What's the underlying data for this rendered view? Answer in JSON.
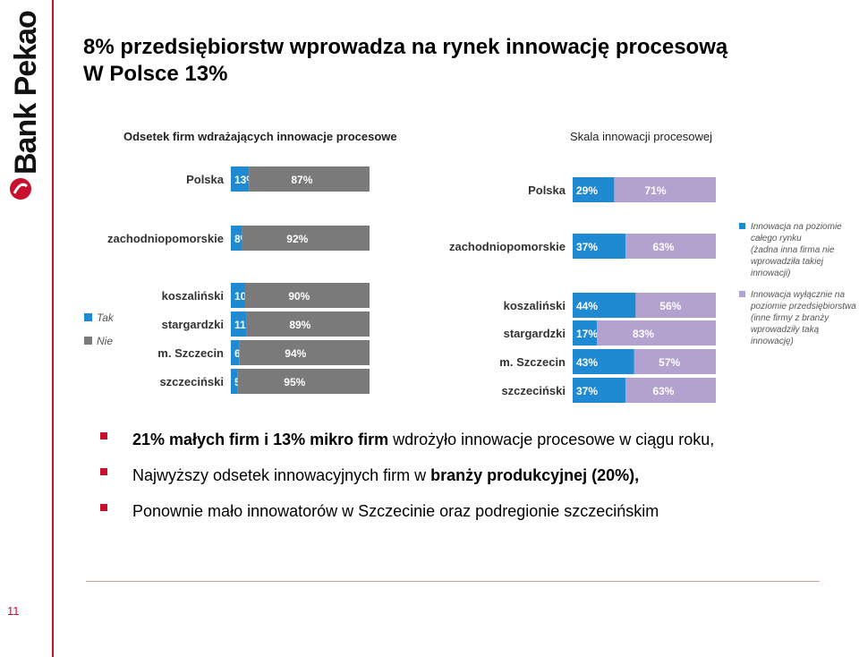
{
  "brand": {
    "logo_text": "Bank Pekao",
    "page_number": "11"
  },
  "title_lines": [
    "8% przedsiębiorstw wprowadza na rynek innowację procesową",
    "W Polsce 13%"
  ],
  "left_subtitle": "Odsetek firm wdrażających innowacje procesowe",
  "right_subtitle": "Skala innowacji procesowej",
  "bullets": [
    {
      "bold": "21% małych firm i 13% mikro firm",
      "rest": " wdrożyło innowacje procesowe w ciągu roku,"
    },
    {
      "pre": "Najwyższy odsetek innowacyjnych firm w ",
      "bold": "branży produkcyjnej (20%),"
    },
    {
      "text": "Ponownie mało innowatorów w Szczecinie oraz podregionie szczecińskim"
    }
  ],
  "colors": {
    "blue": "#1f8ad2",
    "grey": "#7a7a7a",
    "purple": "#b3a2cf",
    "accent_red": "#c8102e"
  },
  "chart_data": [
    {
      "type": "bar",
      "orientation": "horizontal",
      "stacked": true,
      "categories": [
        "Polska",
        "zachodniopomorskie",
        "koszaliński",
        "stargardzki",
        "m. Szczecin",
        "szczeciński"
      ],
      "series": [
        {
          "name": "Tak",
          "values": [
            13,
            8,
            10,
            11,
            6,
            5
          ],
          "labels": [
            "13%",
            "8%",
            "10%",
            "11%",
            "6%",
            "5%"
          ],
          "color": "#1f8ad2"
        },
        {
          "name": "Nie",
          "values": [
            87,
            92,
            90,
            89,
            94,
            95
          ],
          "labels": [
            "87%",
            "92%",
            "90%",
            "89%",
            "94%",
            "95%"
          ],
          "color": "#7a7a7a"
        }
      ],
      "legend_position": "left"
    },
    {
      "type": "bar",
      "orientation": "horizontal",
      "stacked": true,
      "categories": [
        "Polska",
        "zachodniopomorskie",
        "koszaliński",
        "stargardzki",
        "m. Szczecin",
        "szczeciński"
      ],
      "series": [
        {
          "name": "Innowacja na poziomie całego rynku (żadna inna firma nie wprowadziła takiej innowacji)",
          "values": [
            29,
            37,
            44,
            17,
            43,
            37
          ],
          "labels": [
            "29%",
            "37%",
            "44%",
            "17%",
            "43%",
            "37%"
          ],
          "color": "#1f8ad2"
        },
        {
          "name": "Innowacja wyłącznie na poziomie przedsiębiorstwa (inne firmy z branży wprowadziły taką innowację)",
          "values": [
            71,
            63,
            56,
            83,
            57,
            63
          ],
          "labels": [
            "71%",
            "63%",
            "56%",
            "83%",
            "57%",
            "63%"
          ],
          "color": "#b3a2cf"
        }
      ],
      "legend_position": "right",
      "legend_lines": [
        [
          "Innowacja na poziomie",
          "całego rynku",
          "(żadna inna firma nie",
          "wprowadziła takiej",
          "innowacji)"
        ],
        [
          "Innowacja wyłącznie na",
          "poziomie przedsiębiorstwa",
          "(inne firmy z branży",
          "wprowadziły taką",
          "innowację)"
        ]
      ]
    }
  ]
}
